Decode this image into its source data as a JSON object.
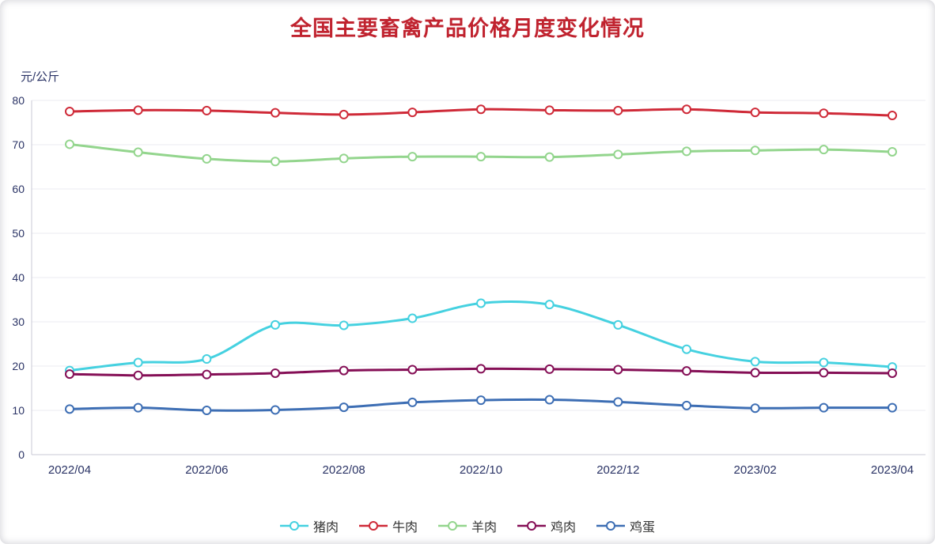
{
  "page": {
    "title": "全国主要畜禽产品价格月度变化情况",
    "y_unit": "元/公斤"
  },
  "colors": {
    "title": "#c0232f",
    "axis_text": "#2a3365",
    "legend_text": "#333333",
    "grid": "#ebebf1",
    "axis_line": "#c9c9d6"
  },
  "chart_data": {
    "type": "line",
    "title": "全国主要畜禽产品价格月度变化情况",
    "ylabel": "元/公斤",
    "xlabel": "",
    "ylim": [
      0,
      80
    ],
    "y_ticks": [
      0,
      10,
      20,
      30,
      40,
      50,
      60,
      70,
      80
    ],
    "grid": true,
    "legend_position": "bottom",
    "marker": "open-circle",
    "x": [
      "2022/04",
      "2022/05",
      "2022/06",
      "2022/07",
      "2022/08",
      "2022/09",
      "2022/10",
      "2022/11",
      "2022/12",
      "2023/01",
      "2023/02",
      "2023/03",
      "2023/04"
    ],
    "x_tick_labels": [
      "2022/04",
      "2022/06",
      "2022/08",
      "2022/10",
      "2022/12",
      "2023/02",
      "2023/04"
    ],
    "series": [
      {
        "key": "pork",
        "name": "猪肉",
        "color": "#45d1e0",
        "values": [
          19.0,
          20.8,
          21.6,
          29.3,
          29.2,
          30.8,
          34.2,
          33.9,
          29.3,
          23.8,
          21.0,
          20.8,
          19.8
        ]
      },
      {
        "key": "beef",
        "name": "牛肉",
        "color": "#cf2a38",
        "values": [
          77.5,
          77.8,
          77.7,
          77.2,
          76.8,
          77.3,
          78.0,
          77.8,
          77.7,
          78.0,
          77.3,
          77.1,
          76.6
        ]
      },
      {
        "key": "mutton",
        "name": "羊肉",
        "color": "#93d58d",
        "values": [
          70.1,
          68.3,
          66.8,
          66.2,
          66.9,
          67.3,
          67.3,
          67.2,
          67.8,
          68.5,
          68.7,
          68.9,
          68.4
        ]
      },
      {
        "key": "chicken",
        "name": "鸡肉",
        "color": "#850f56",
        "values": [
          18.2,
          17.9,
          18.1,
          18.4,
          19.0,
          19.2,
          19.4,
          19.3,
          19.2,
          18.9,
          18.5,
          18.5,
          18.4
        ]
      },
      {
        "key": "egg",
        "name": "鸡蛋",
        "color": "#3d6eb4",
        "values": [
          10.3,
          10.6,
          10.0,
          10.1,
          10.7,
          11.8,
          12.3,
          12.4,
          11.9,
          11.1,
          10.5,
          10.6,
          10.6
        ]
      }
    ]
  }
}
